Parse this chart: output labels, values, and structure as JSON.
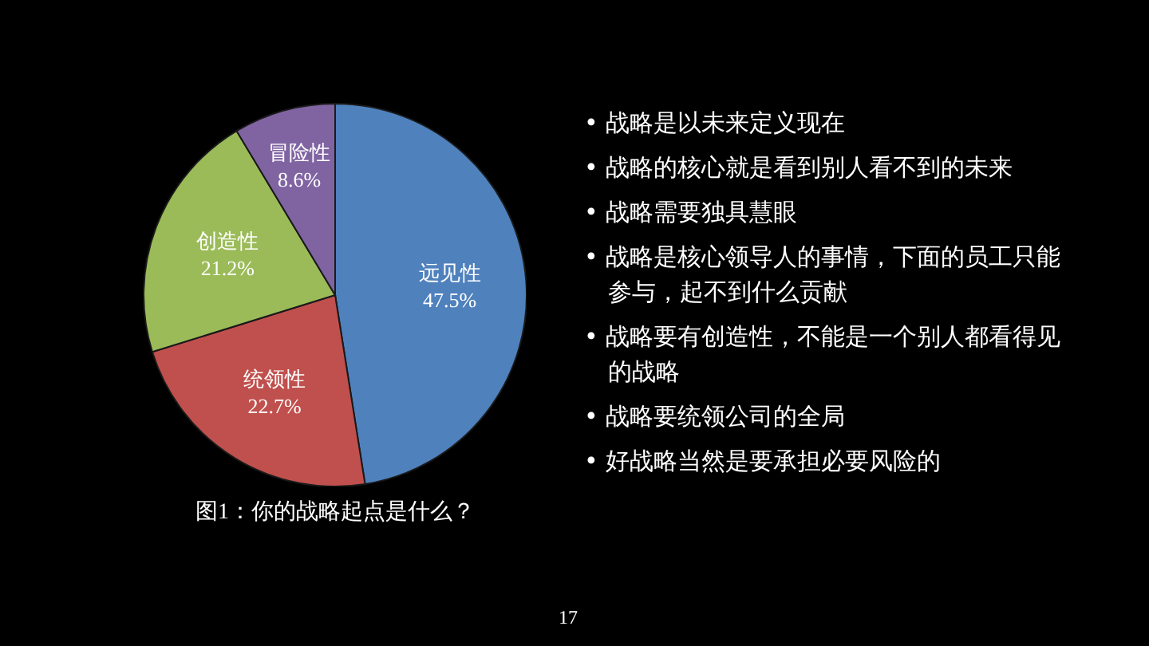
{
  "chart_data": {
    "type": "pie",
    "title": "图1：你的战略起点是什么？",
    "categories": [
      "远见性",
      "统领性",
      "创造性",
      "冒险性"
    ],
    "values": [
      47.5,
      22.7,
      21.2,
      8.6
    ],
    "value_labels": [
      "47.5%",
      "22.7%",
      "21.2%",
      "8.6%"
    ],
    "colors": [
      "#4f81bd",
      "#c0504d",
      "#9bbb59",
      "#8064a2"
    ],
    "legend": false,
    "annotations": [
      "• 战略是以未来定义现在",
      "• 战略的核心就是看到别人看不到的未来",
      "• 战略需要独具慧眼",
      "• 战略是核心领导人的事情，下面的员工只能参与，起不到什么贡献",
      "• 战略要有创造性，不能是一个别人都看得见的战略",
      "• 战略要统领公司的全局",
      "• 好战略当然是要承担必要风险的",
      "17"
    ]
  }
}
